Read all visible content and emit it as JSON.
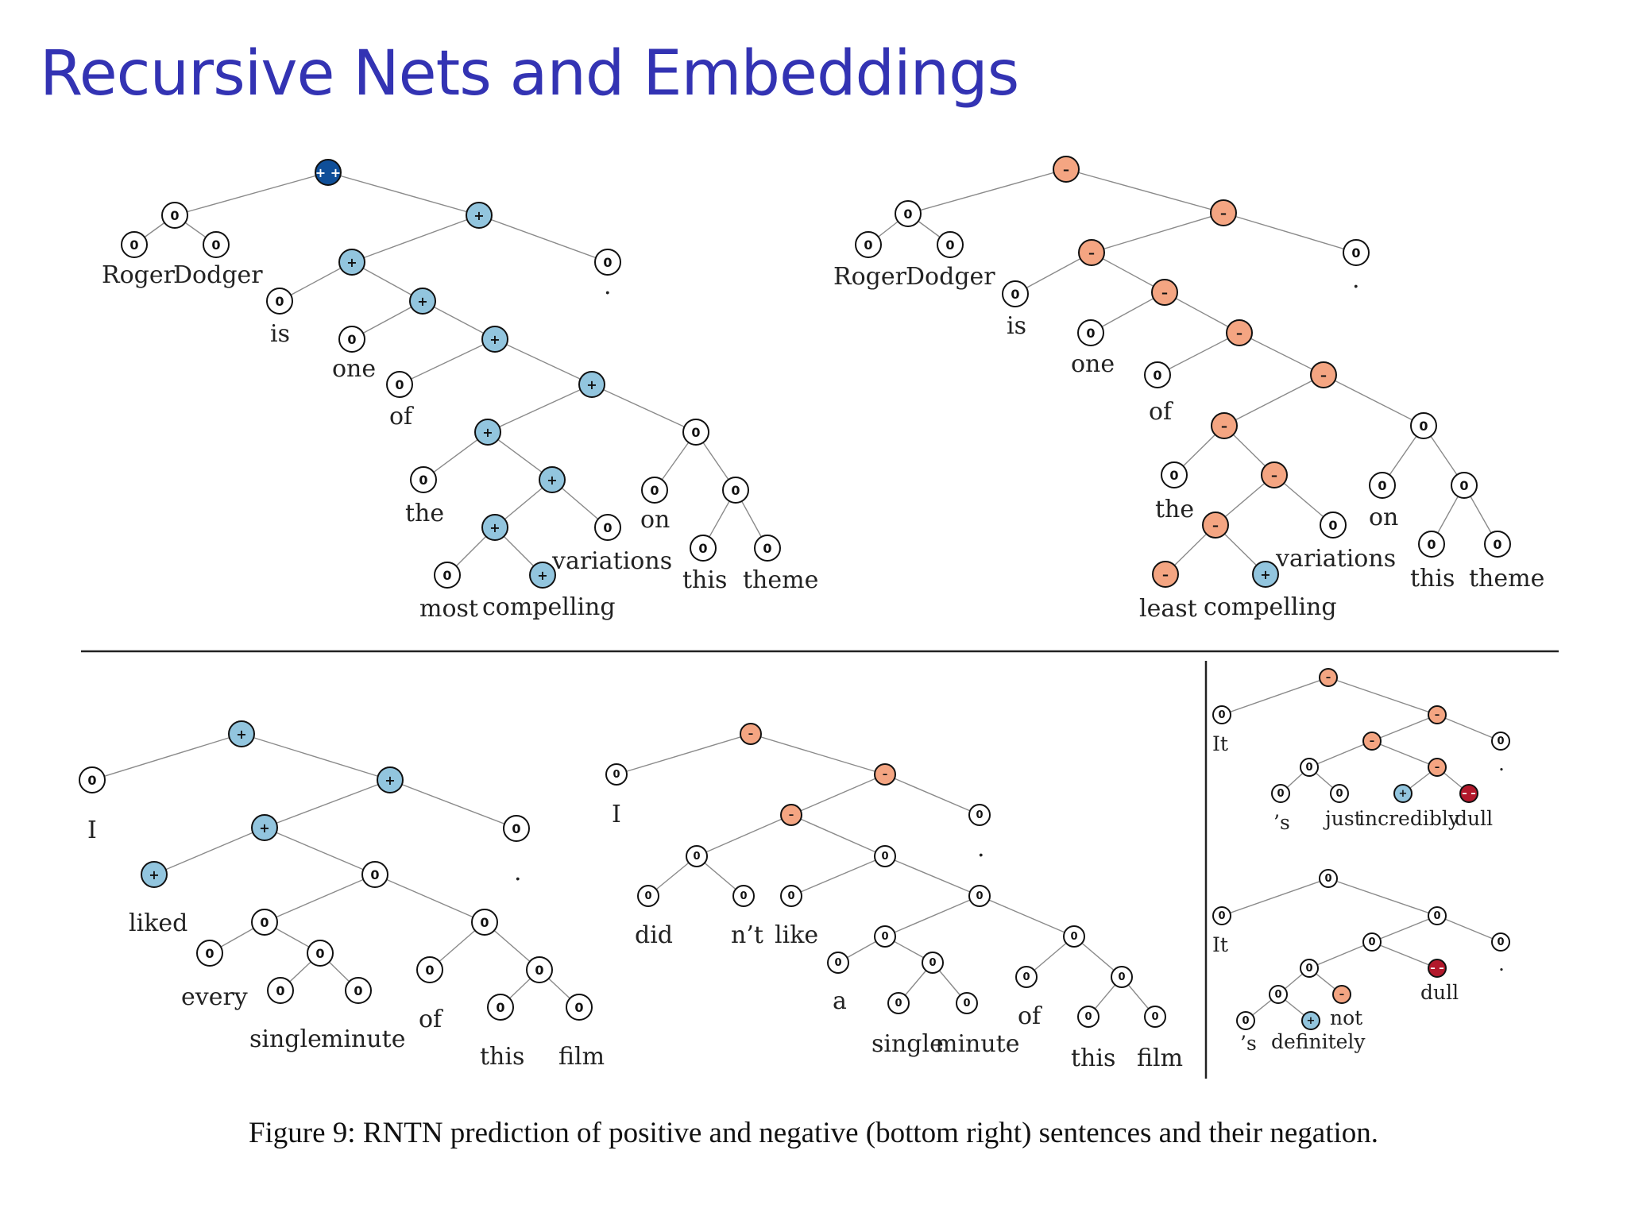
{
  "title": "Recursive Nets and Embeddings",
  "caption": "Figure 9: RNTN prediction of positive and negative (bottom right) sentences and their negation.",
  "legend": {
    "++": {
      "fill": "#0f4f99",
      "text": "#ffffff",
      "symbol": "+ +"
    },
    "+": {
      "fill": "#92c5de",
      "text": "#111111",
      "symbol": "+"
    },
    "0": {
      "fill": "#ffffff",
      "text": "#111111",
      "symbol": "0"
    },
    "-": {
      "fill": "#f4a582",
      "text": "#111111",
      "symbol": "–"
    },
    "--": {
      "fill": "#b2182b",
      "text": "#ffffff",
      "symbol": "– –"
    }
  },
  "trees": [
    {
      "id": "tree-roger-most-compelling",
      "words": [
        "Roger",
        "Dodger",
        "is",
        "one",
        "of",
        "the",
        "most",
        "compelling",
        "variations",
        "on",
        "this",
        "theme",
        "."
      ],
      "word_sentiments": [
        "0",
        "0",
        "0",
        "0",
        "0",
        "0",
        "0",
        "+",
        "0",
        "0",
        "0",
        "0",
        "0"
      ],
      "root_sentiment": "++"
    },
    {
      "id": "tree-roger-least-compelling",
      "words": [
        "Roger",
        "Dodger",
        "is",
        "one",
        "of",
        "the",
        "least",
        "compelling",
        "variations",
        "on",
        "this",
        "theme",
        "."
      ],
      "word_sentiments": [
        "0",
        "0",
        "0",
        "0",
        "0",
        "0",
        "-",
        "+",
        "0",
        "0",
        "0",
        "0",
        "0"
      ],
      "root_sentiment": "-"
    },
    {
      "id": "tree-i-liked",
      "words": [
        "I",
        "liked",
        "every",
        "single",
        "minute",
        "of",
        "this",
        "film",
        "."
      ],
      "word_sentiments": [
        "0",
        "+",
        "0",
        "0",
        "0",
        "0",
        "0",
        "0",
        "0"
      ],
      "root_sentiment": "+"
    },
    {
      "id": "tree-i-didnt-like",
      "words": [
        "I",
        "did",
        "n’t",
        "like",
        "a",
        "single",
        "minute",
        "of",
        "this",
        "film",
        "."
      ],
      "word_sentiments": [
        "0",
        "0",
        "0",
        "0",
        "0",
        "0",
        "0",
        "0",
        "0",
        "0",
        "0"
      ],
      "root_sentiment": "-"
    },
    {
      "id": "tree-incredibly-dull",
      "words": [
        "It",
        "’s",
        "just",
        "incredibly",
        "dull",
        "."
      ],
      "word_sentiments": [
        "0",
        "0",
        "0",
        "+",
        "--",
        "0"
      ],
      "root_sentiment": "-"
    },
    {
      "id": "tree-definitely-not-dull",
      "words": [
        "It",
        "’s",
        "definitely",
        "not",
        "dull",
        "."
      ],
      "word_sentiments": [
        "0",
        "0",
        "+",
        "-",
        "--",
        "0"
      ],
      "root_sentiment": "0"
    }
  ]
}
